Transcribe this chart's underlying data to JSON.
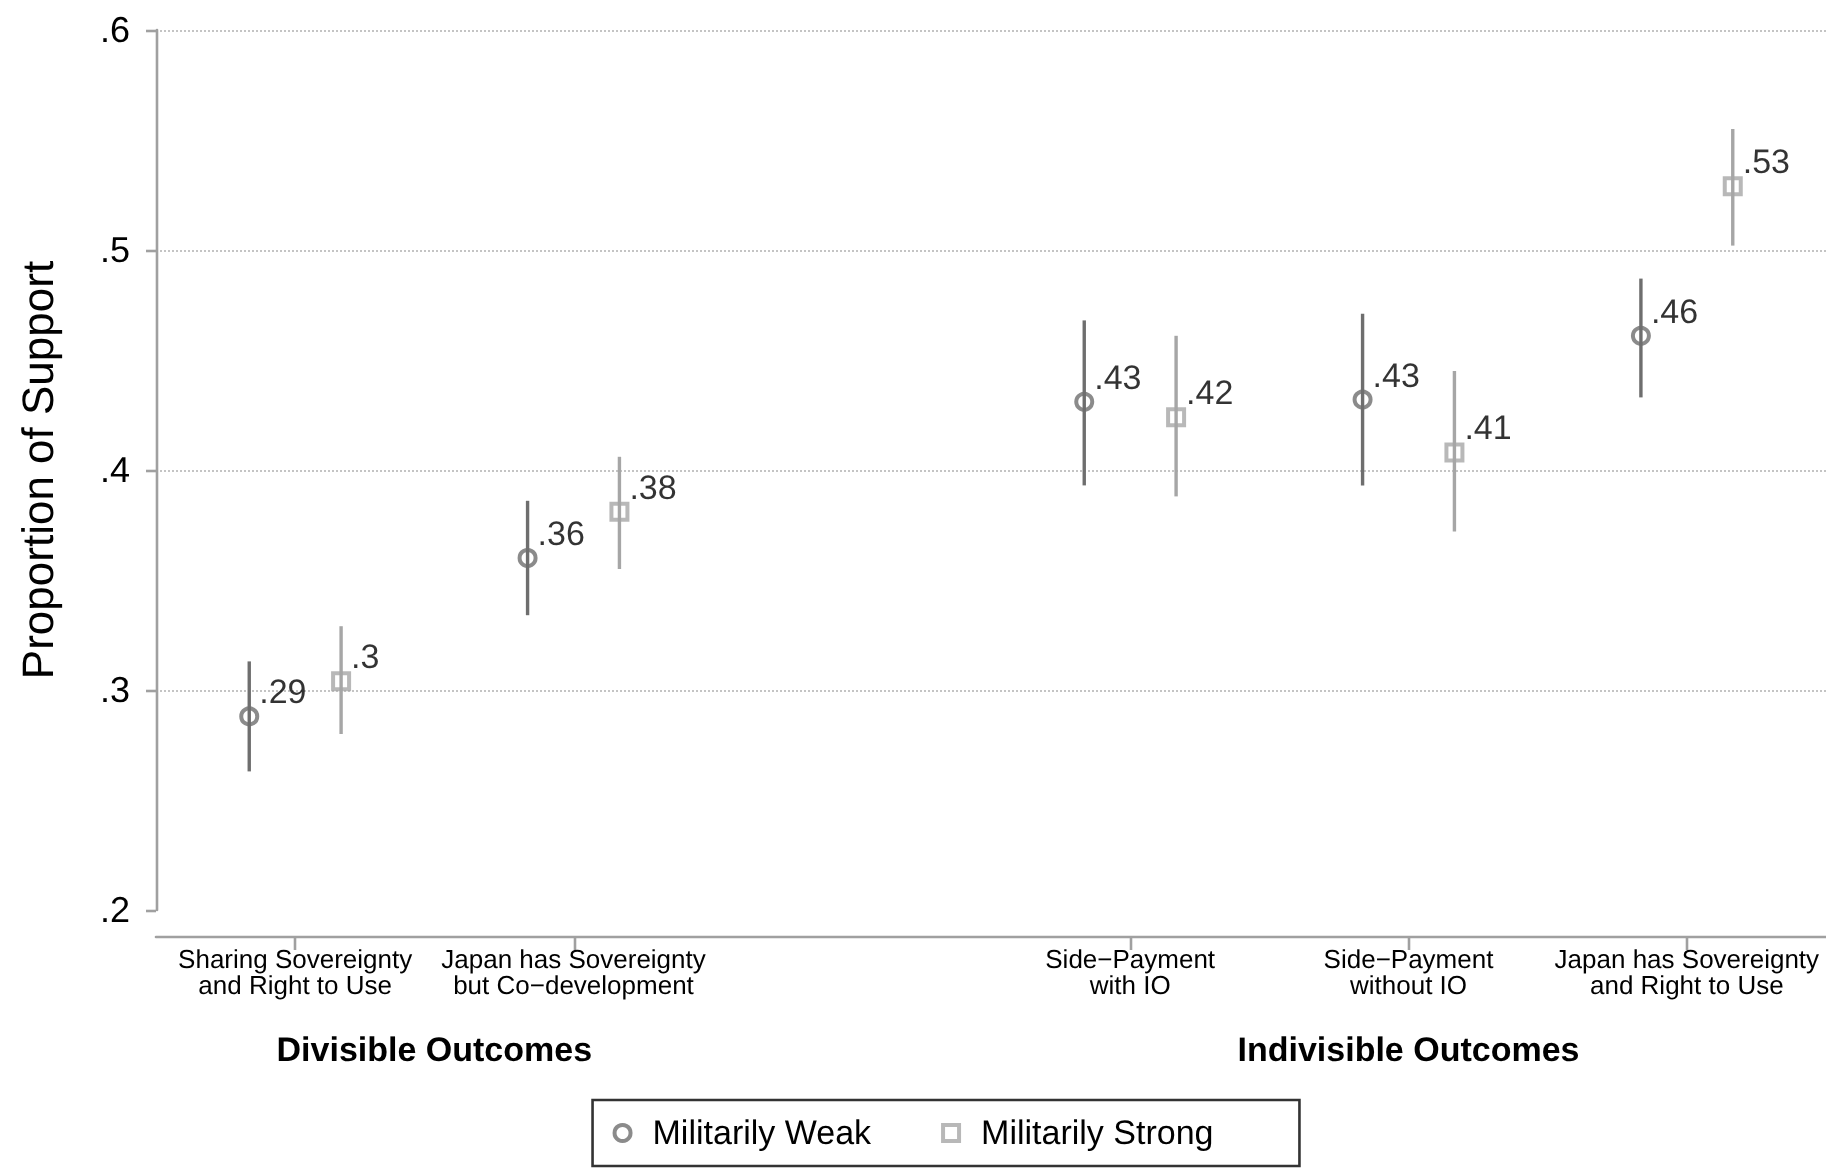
{
  "chart_data": {
    "type": "scatter",
    "ylabel": "Proportion of Support",
    "categories": [
      "Sharing Sovereignty\nand Right to Use",
      "Japan has Sovereignty\nbut Co−development",
      null,
      "Side−Payment\nwith IO",
      "Side−Payment\nwithout IO",
      "Japan has Sovereignty\nand Right to Use"
    ],
    "series": [
      {
        "name": "Militarily Weak",
        "color": "#6e6e6e",
        "marker": "circle",
        "values": [
          0.288,
          0.36,
          null,
          0.431,
          0.432,
          0.461
        ],
        "errors": [
          [
            0.263,
            0.313
          ],
          [
            0.334,
            0.386
          ],
          null,
          [
            0.393,
            0.468
          ],
          [
            0.393,
            0.471
          ],
          [
            0.433,
            0.487
          ]
        ],
        "value_labels": [
          ".29",
          ".36",
          null,
          ".43",
          ".43",
          ".46"
        ]
      },
      {
        "name": "Militarily Strong",
        "color": "#a6a6a6",
        "marker": "square",
        "values": [
          0.304,
          0.381,
          null,
          0.424,
          0.408,
          0.529
        ],
        "errors": [
          [
            0.28,
            0.329
          ],
          [
            0.355,
            0.406
          ],
          null,
          [
            0.388,
            0.461
          ],
          [
            0.372,
            0.445
          ],
          [
            0.502,
            0.555
          ]
        ],
        "value_labels": [
          ".3",
          ".38",
          null,
          ".42",
          ".41",
          ".53"
        ]
      }
    ],
    "ylim": [
      0.2,
      0.6
    ],
    "yticks": [
      {
        "value": 0.2,
        "label": ".2"
      },
      {
        "value": 0.3,
        "label": ".3"
      },
      {
        "value": 0.4,
        "label": ".4"
      },
      {
        "value": 0.5,
        "label": ".5"
      },
      {
        "value": 0.6,
        "label": ".6"
      }
    ],
    "grid": "y",
    "legend": "bottom",
    "annotations": [
      "Divisible Outcomes",
      "Indivisible Outcomes"
    ]
  }
}
